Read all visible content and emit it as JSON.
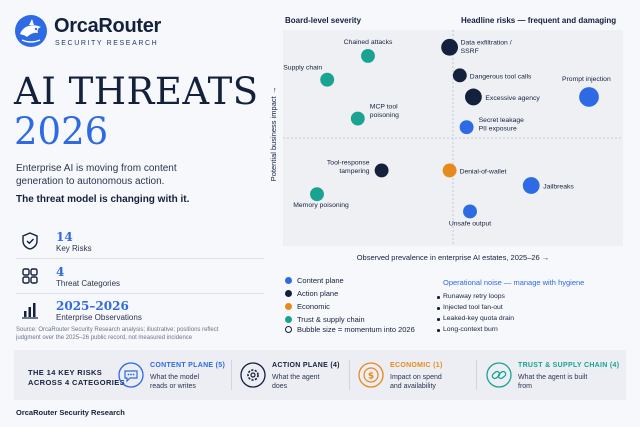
{
  "brand": {
    "name": "OrcaRouter",
    "subtitle": "SECURITY RESEARCH"
  },
  "hero": {
    "title_line1": "AI THREATS",
    "title_line2": "2026",
    "intro_line1": "Enterprise AI is moving from content",
    "intro_line2": "generation to autonomous action.",
    "intro_bold": "The threat model is changing with it."
  },
  "stats": [
    {
      "icon": "shield-check-icon",
      "value": "14",
      "label": "Key Risks"
    },
    {
      "icon": "grid-icon",
      "value": "4",
      "label": "Threat Categories"
    },
    {
      "icon": "bar-chart-icon",
      "value": "2025–2026",
      "label": "Enterprise Observations"
    }
  ],
  "source_note": {
    "line1": "Source: OrcaRouter Security Research analysis; illustrative; positions reflect",
    "line2": "judgment over the 2025–26 public record, not measured incidence"
  },
  "chart_data": {
    "type": "scatter",
    "quadrant_titles": {
      "top_left": "Board-level severity",
      "top_right": "Headline risks — frequent and damaging"
    },
    "xlabel": "Observed prevalence in enterprise AI estates, 2025–26 →",
    "ylabel": "Potential business impact →",
    "xlim": [
      0,
      100
    ],
    "ylim": [
      0,
      100
    ],
    "grid": false,
    "points": [
      {
        "label": "Chained attacks",
        "x": 25,
        "y": 88,
        "size": 3,
        "category": "trust"
      },
      {
        "label": "Supply chain",
        "x": 13,
        "y": 77,
        "size": 3,
        "category": "trust"
      },
      {
        "label": "MCP tool poisoning",
        "x": 22,
        "y": 59,
        "size": 3,
        "category": "trust"
      },
      {
        "label": "Tool-response tampering",
        "x": 29,
        "y": 35,
        "size": 3,
        "category": "action"
      },
      {
        "label": "Memory poisoning",
        "x": 10,
        "y": 24,
        "size": 3,
        "category": "trust"
      },
      {
        "label": "Data exfiltration / SSRF",
        "x": 49,
        "y": 92,
        "size": 4,
        "category": "action"
      },
      {
        "label": "Dangerous tool calls",
        "x": 52,
        "y": 79,
        "size": 3,
        "category": "action"
      },
      {
        "label": "Excessive agency",
        "x": 56,
        "y": 69,
        "size": 4,
        "category": "action"
      },
      {
        "label": "Prompt injection",
        "x": 90,
        "y": 69,
        "size": 5,
        "category": "content"
      },
      {
        "label": "Secret leakage PII exposure",
        "x": 54,
        "y": 55,
        "size": 3,
        "category": "content"
      },
      {
        "label": "Denial-of-wallet",
        "x": 49,
        "y": 35,
        "size": 3,
        "category": "economic"
      },
      {
        "label": "Jailbreaks",
        "x": 73,
        "y": 28,
        "size": 4,
        "category": "content"
      },
      {
        "label": "Unsafe output",
        "x": 55,
        "y": 16,
        "size": 3,
        "category": "content"
      }
    ]
  },
  "legend": {
    "items": [
      {
        "key": "content",
        "label": "Content plane",
        "color": "#2d6ae3"
      },
      {
        "key": "action",
        "label": "Action plane",
        "color": "#14213d"
      },
      {
        "key": "economic",
        "label": "Economic",
        "color": "#e68a1e"
      },
      {
        "key": "trust",
        "label": "Trust & supply chain",
        "color": "#1aa391"
      }
    ],
    "bubble_note": "Bubble size = momentum into 2026"
  },
  "noise": {
    "title": "Operational noise — manage with hygiene",
    "items": [
      "Runaway retry loops",
      "Injected tool fan-out",
      "Leaked-key quota drain",
      "Long-context burn"
    ]
  },
  "footer": {
    "title_line1": "THE 14 KEY RISKS",
    "title_line2": "ACROSS 4 CATEGORIES",
    "categories": [
      {
        "icon": "chat-icon",
        "name": "CONTENT PLANE (5)",
        "desc1": "What the model",
        "desc2": "reads or writes",
        "color": "#2d6ae3"
      },
      {
        "icon": "gear-icon",
        "name": "ACTION PLANE (4)",
        "desc1": "What the agent",
        "desc2": "does",
        "color": "#14213d"
      },
      {
        "icon": "dollar-icon",
        "name": "ECONOMIC (1)",
        "desc1": "Impact on spend",
        "desc2": "and availability",
        "color": "#e68a1e"
      },
      {
        "icon": "link-icon",
        "name": "TRUST & SUPPLY CHAIN (4)",
        "desc1": "What the agent is built",
        "desc2": "from",
        "color": "#1aa391"
      }
    ],
    "credit": "OrcaRouter Security Research"
  }
}
